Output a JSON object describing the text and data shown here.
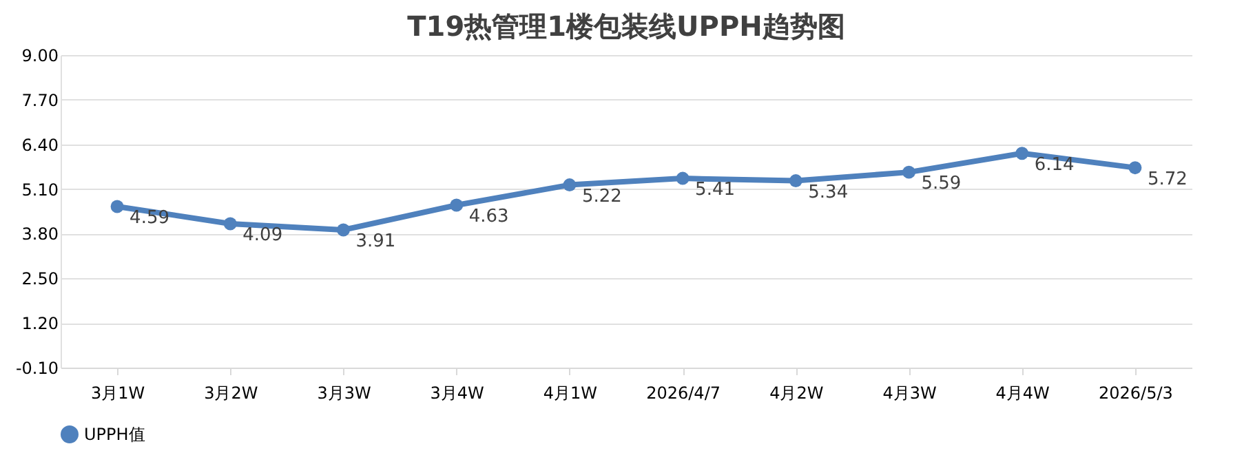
{
  "chart_data": {
    "type": "line",
    "title": "T19热管理1楼包装线UPPH趋势图",
    "categories": [
      "3月1W",
      "3月2W",
      "3月3W",
      "3月4W",
      "4月1W",
      "2026/4/7",
      "4月2W",
      "4月3W",
      "4月4W",
      "2026/5/3"
    ],
    "series": [
      {
        "name": "UPPH值",
        "color": "#4f81bd",
        "values": [
          4.59,
          4.09,
          3.91,
          4.63,
          5.22,
          5.41,
          5.34,
          5.59,
          6.14,
          5.72
        ]
      }
    ],
    "ylim": [
      -0.1,
      9.0
    ],
    "yticks": [
      {
        "value": -0.1,
        "label": "-0.10"
      },
      {
        "value": 1.2,
        "label": "1.20"
      },
      {
        "value": 2.5,
        "label": "2.50"
      },
      {
        "value": 3.8,
        "label": "3.80"
      },
      {
        "value": 5.1,
        "label": "5.10"
      },
      {
        "value": 6.4,
        "label": "6.40"
      },
      {
        "value": 7.7,
        "label": "7.70"
      },
      {
        "value": 9.0,
        "label": "9.00"
      }
    ],
    "grid": "y",
    "legend": "bottom",
    "marker": "circle",
    "line_style": "solid",
    "data_labels": true
  }
}
